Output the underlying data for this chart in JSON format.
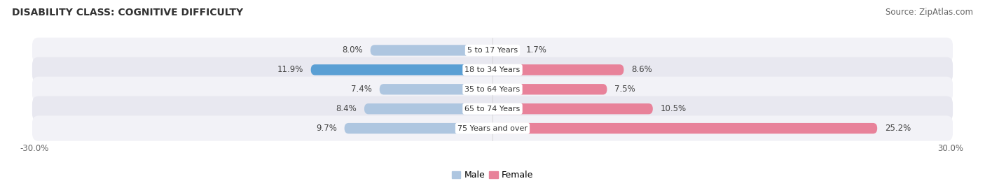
{
  "title": "DISABILITY CLASS: COGNITIVE DIFFICULTY",
  "source": "Source: ZipAtlas.com",
  "categories": [
    "5 to 17 Years",
    "18 to 34 Years",
    "35 to 64 Years",
    "65 to 74 Years",
    "75 Years and over"
  ],
  "male_values": [
    8.0,
    11.9,
    7.4,
    8.4,
    9.7
  ],
  "female_values": [
    1.7,
    8.6,
    7.5,
    10.5,
    25.2
  ],
  "male_color_light": "#aec6e0",
  "male_color_dark": "#5a9fd4",
  "female_color": "#e8829a",
  "row_bg_color_odd": "#f2f2f7",
  "row_bg_color_even": "#e8e8f0",
  "xlim": 30.0,
  "legend_male": "Male",
  "legend_female": "Female",
  "title_fontsize": 10,
  "source_fontsize": 8.5,
  "bar_height": 0.55
}
